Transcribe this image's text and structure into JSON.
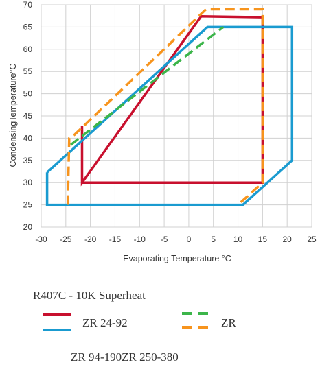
{
  "chart_data": {
    "type": "line",
    "title": "R407C - 10K Superheat",
    "xlabel": "Evaporating Temperature °C",
    "ylabel": "CondensingTemperature°C",
    "xlim": [
      -30,
      25
    ],
    "ylim": [
      20,
      70
    ],
    "x_ticks": [
      "-30",
      "-25",
      "-20",
      "-15",
      "-10",
      "-5",
      "0",
      "5",
      "10",
      "15",
      "20",
      "25"
    ],
    "y_ticks": [
      "20",
      "25",
      "30",
      "35",
      "40",
      "45",
      "50",
      "55",
      "60",
      "65",
      "70"
    ],
    "grid": true,
    "series": [
      {
        "name": "ZR 24-92",
        "color": "#c8102e",
        "dashed": false,
        "x": [
          -21.7,
          -21.7,
          2.5,
          15,
          15,
          -21.7
        ],
        "y": [
          42.8,
          30,
          67.4,
          67.2,
          30,
          30
        ]
      },
      {
        "name": "ZR 94-190",
        "color": "#1a9bd0",
        "dashed": false,
        "x": [
          -28.8,
          -28.8,
          11,
          21,
          21,
          3.8,
          -28.8
        ],
        "y": [
          32.3,
          25,
          25,
          35,
          65,
          65,
          32.3
        ]
      },
      {
        "name": "ZR",
        "color": "#3cb54a",
        "dashed": true,
        "x": [
          -24,
          7
        ],
        "y": [
          38.5,
          65
        ]
      },
      {
        "name": "ZR 250-380",
        "color": "#f7941d",
        "dashed": true,
        "x": [
          -24.6,
          -24.3,
          -23.2,
          3.5,
          15,
          15,
          10
        ],
        "y": [
          25,
          40,
          40.8,
          69,
          69,
          30,
          25
        ]
      }
    ],
    "legend": [
      {
        "label": "ZR 24-92",
        "color": "#c8102e",
        "dashed": false
      },
      {
        "label": "ZR 94-190",
        "color": "#1a9bd0",
        "dashed": false
      },
      {
        "label": "ZR",
        "color": "#3cb54a",
        "dashed": true
      },
      {
        "label": "ZR 250-380",
        "color": "#f7941d",
        "dashed": true
      }
    ],
    "legend_texts": {
      "title": "R407C - 10K Superheat",
      "label_red": "ZR 24-92",
      "label_green_orange": "ZR",
      "label_bottom": "ZR 94-190ZR 250-380"
    }
  }
}
